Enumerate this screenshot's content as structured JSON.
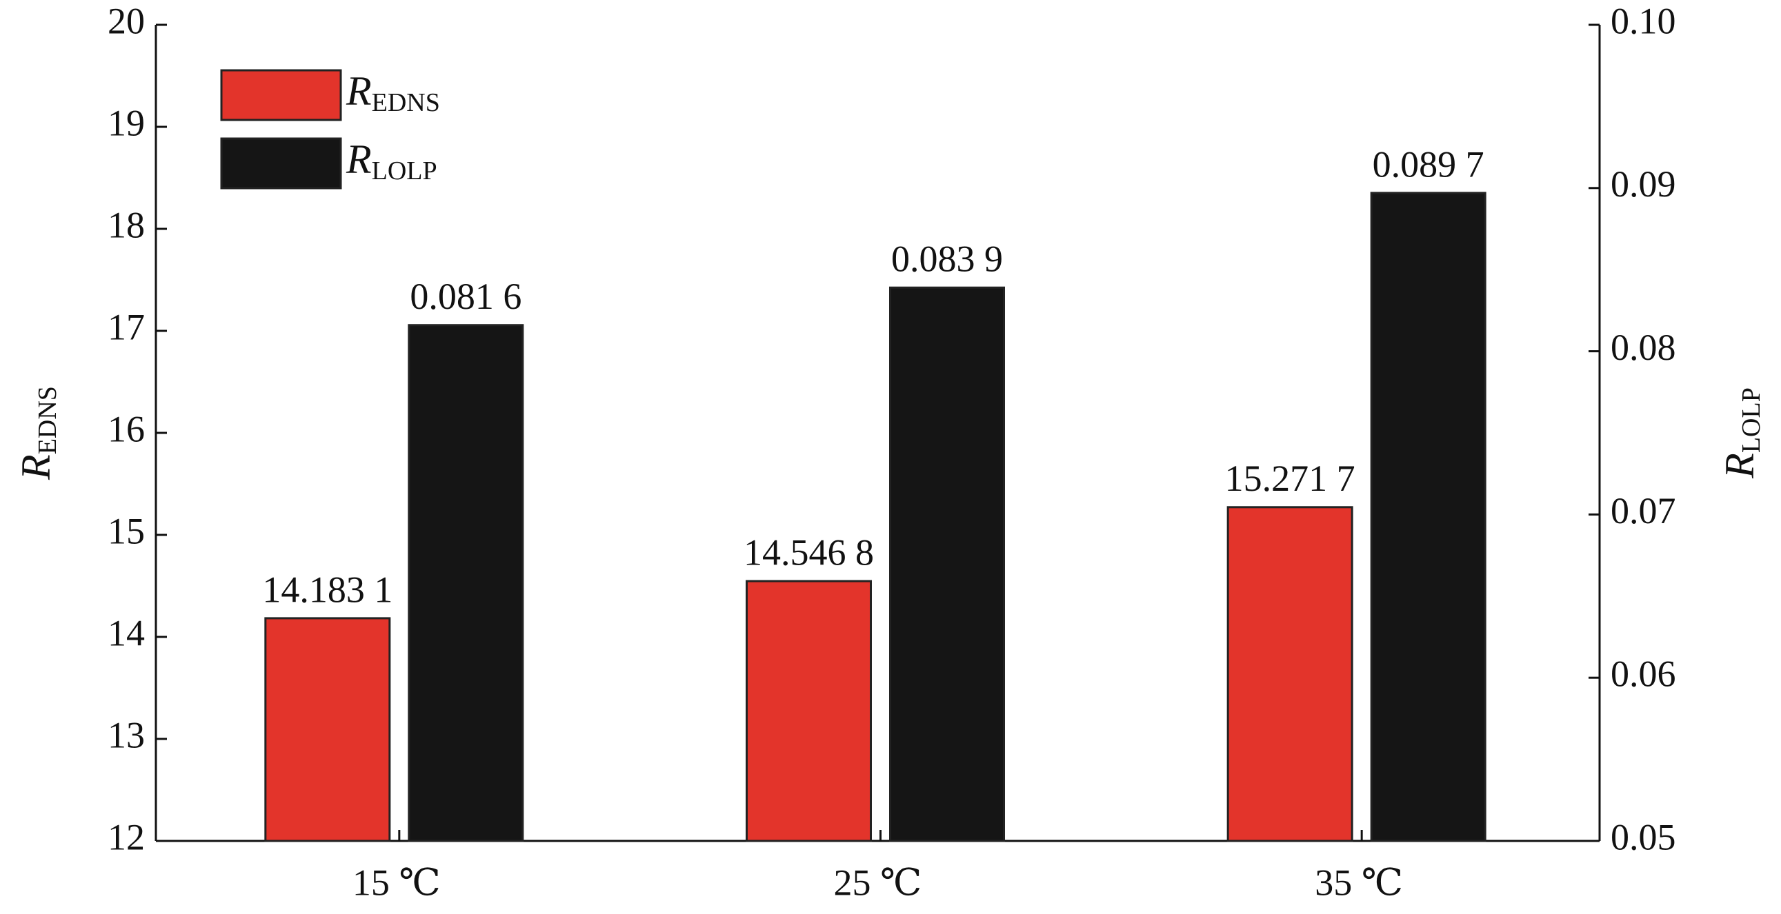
{
  "chart_data": {
    "type": "bar",
    "categories": [
      "15 ℃",
      "25 ℃",
      "35 ℃"
    ],
    "ylabel": {
      "text": "R",
      "subscript": "EDNS"
    },
    "y2label": {
      "text": "R",
      "subscript": "LOLP"
    },
    "series": [
      {
        "name": "R",
        "subscript": "EDNS",
        "color": "#e3342b",
        "values": [
          14.1831,
          14.5468,
          15.2717
        ],
        "value_labels": [
          "14.183 1",
          "14.546 8",
          "15.271 7"
        ]
      },
      {
        "name": "R",
        "subscript": "LOLP",
        "color": "#151515",
        "axis": "y2",
        "values": [
          0.0816,
          0.0839,
          0.0897
        ],
        "value_labels": [
          "0.081 6",
          "0.083 9",
          "0.089 7"
        ]
      }
    ],
    "ylim": [
      12,
      20
    ],
    "yticks": [
      12,
      13,
      14,
      15,
      16,
      17,
      18,
      19,
      20
    ],
    "y2lim": [
      0.05,
      0.1
    ],
    "y2ticks": [
      0.05,
      0.06,
      0.07,
      0.08,
      0.09,
      {
        "value": 0.1,
        "label": "0.10"
      }
    ],
    "legend": "upper left"
  }
}
